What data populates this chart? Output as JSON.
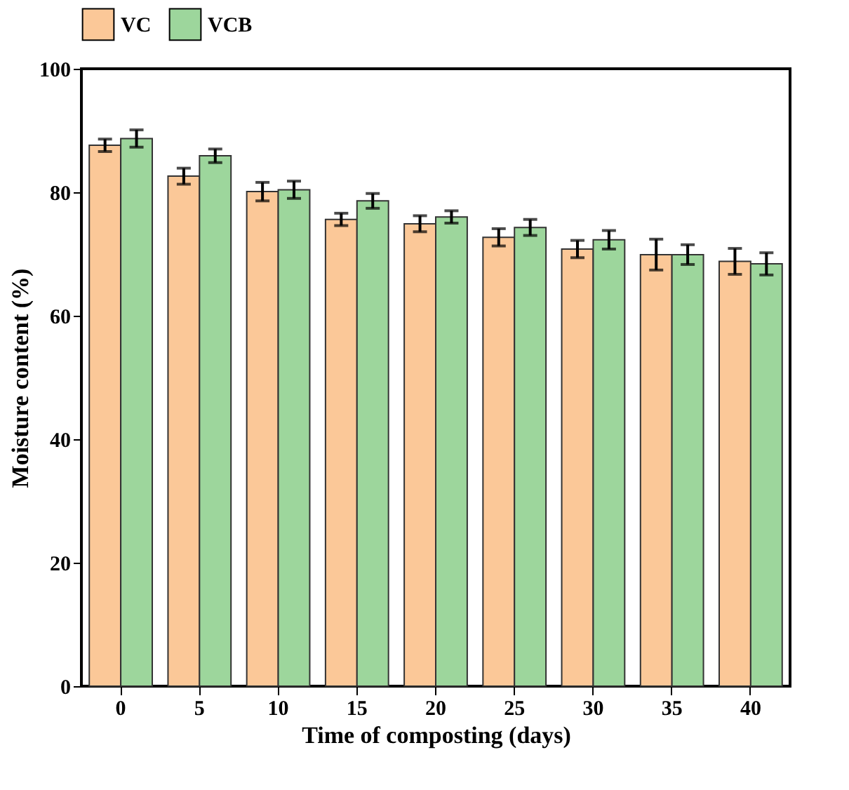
{
  "chart_data": {
    "type": "bar",
    "xlabel": "Time of composting (days)",
    "ylabel": "Moisture content (%)",
    "categories": [
      "0",
      "5",
      "10",
      "15",
      "20",
      "25",
      "30",
      "35",
      "40"
    ],
    "series": [
      {
        "name": "VC",
        "color": "#fbc898",
        "values": [
          87.6,
          82.6,
          80.1,
          75.6,
          74.9,
          72.7,
          70.8,
          69.9,
          68.8
        ],
        "errors": [
          1.0,
          1.3,
          1.5,
          1.0,
          1.3,
          1.4,
          1.4,
          2.5,
          2.1
        ]
      },
      {
        "name": "VCB",
        "color": "#9dd69c",
        "values": [
          88.7,
          85.9,
          80.4,
          78.6,
          76.0,
          74.3,
          72.3,
          69.9,
          68.4
        ],
        "errors": [
          1.4,
          1.1,
          1.4,
          1.2,
          1.0,
          1.3,
          1.5,
          1.6,
          1.8
        ]
      }
    ],
    "ylim": [
      0,
      100
    ],
    "yticks": [
      0,
      20,
      40,
      60,
      80,
      100
    ],
    "grid": false,
    "legend": "top"
  }
}
